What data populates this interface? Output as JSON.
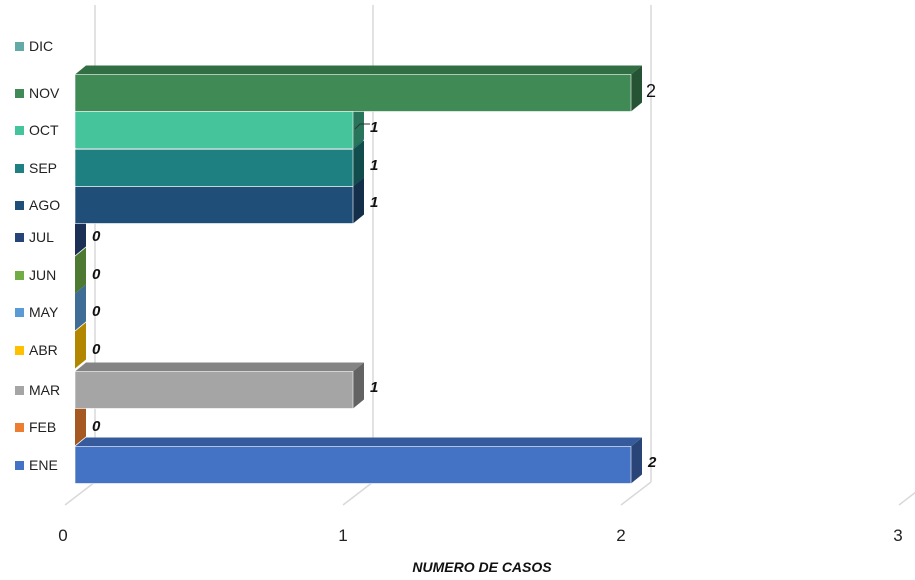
{
  "chart_data": {
    "type": "bar",
    "orientation": "horizontal",
    "three_d": true,
    "categories": [
      "ENE",
      "FEB",
      "MAR",
      "ABR",
      "MAY",
      "JUN",
      "JUL",
      "AGO",
      "SEP",
      "OCT",
      "NOV",
      "DIC"
    ],
    "values": [
      2,
      0,
      1,
      0,
      0,
      0,
      0,
      1,
      1,
      1,
      2,
      null
    ],
    "data_labels": [
      "2",
      "0",
      "1",
      "0",
      "0",
      "0",
      "0",
      "1",
      "1",
      "1",
      "2",
      ""
    ],
    "colors": [
      "#4472C4",
      "#ED7D31",
      "#A5A5A5",
      "#FFC000",
      "#5B9BD5",
      "#70AD47",
      "#264478",
      "#1F4E79",
      "#1E8080",
      "#45C39A",
      "#3F8A55",
      "#62AAA6"
    ],
    "xlabel": "NUMERO DE CASOS",
    "xticks": [
      "0",
      "1",
      "2",
      "3"
    ],
    "xlim": [
      0,
      3
    ],
    "grid": true,
    "legend": "left"
  }
}
